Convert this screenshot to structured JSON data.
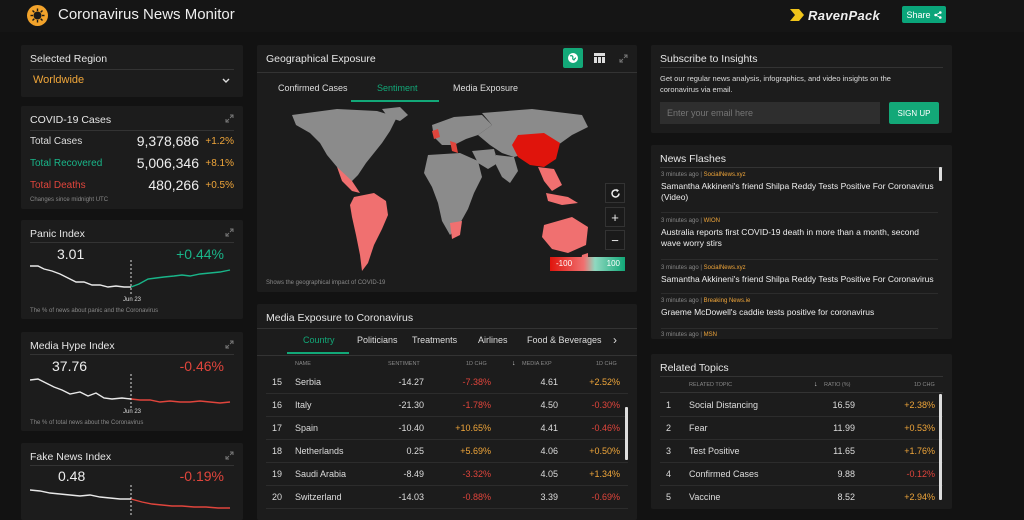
{
  "app": {
    "title": "Coronavirus News Monitor",
    "brand": "RavenPack",
    "share_label": "Share"
  },
  "region": {
    "title": "Selected Region",
    "value": "Worldwide"
  },
  "cases": {
    "title": "COVID-19 Cases",
    "rows": [
      {
        "label": "Total Cases",
        "value": "9,378,686",
        "pct": "+1.2%"
      },
      {
        "label": "Total Recovered",
        "value": "5,006,346",
        "pct": "+8.1%"
      },
      {
        "label": "Total Deaths",
        "value": "480,266",
        "pct": "+0.5%"
      }
    ],
    "note": "Changes since midnight UTC"
  },
  "panic": {
    "title": "Panic Index",
    "value": "3.01",
    "change": "+0.44%",
    "date": "Jun 23",
    "note": "The % of news about panic and the Coronavirus"
  },
  "hype": {
    "title": "Media Hype Index",
    "value": "37.76",
    "change": "-0.46%",
    "date": "Jun 23",
    "note": "The % of total news about the Coronavirus"
  },
  "fake": {
    "title": "Fake News Index",
    "value": "0.48",
    "change": "-0.19%"
  },
  "geo": {
    "title": "Geographical Exposure",
    "tabs": [
      "Confirmed Cases",
      "Sentiment",
      "Media Exposure"
    ],
    "active_tab": "Sentiment",
    "legend_min": "-100",
    "legend_max": "100",
    "caption": "Shows the geographical impact of COVID-19"
  },
  "media": {
    "title": "Media Exposure to Coronavirus",
    "tabs": [
      "Country",
      "Politicians",
      "Treatments",
      "Airlines",
      "Food & Beverages"
    ],
    "active_tab": "Country",
    "columns": [
      "NAME",
      "SENTIMENT",
      "1D CHG",
      "MEDIA EXP",
      "1D CHG"
    ],
    "rows": [
      {
        "rank": "15",
        "name": "Serbia",
        "sentiment": "-14.27",
        "chg1": "-7.38%",
        "exposure": "4.61",
        "chg2": "+2.52%"
      },
      {
        "rank": "16",
        "name": "Italy",
        "sentiment": "-21.30",
        "chg1": "-1.78%",
        "exposure": "4.50",
        "chg2": "-0.30%"
      },
      {
        "rank": "17",
        "name": "Spain",
        "sentiment": "-10.40",
        "chg1": "+10.65%",
        "exposure": "4.41",
        "chg2": "-0.46%"
      },
      {
        "rank": "18",
        "name": "Netherlands",
        "sentiment": "0.25",
        "chg1": "+5.69%",
        "exposure": "4.06",
        "chg2": "+0.50%"
      },
      {
        "rank": "19",
        "name": "Saudi Arabia",
        "sentiment": "-8.49",
        "chg1": "-3.32%",
        "exposure": "4.05",
        "chg2": "+1.34%"
      },
      {
        "rank": "20",
        "name": "Switzerland",
        "sentiment": "-14.03",
        "chg1": "-0.88%",
        "exposure": "3.39",
        "chg2": "-0.69%"
      }
    ]
  },
  "subscribe": {
    "title": "Subscribe to Insights",
    "text": "Get our regular news analysis, infographics, and video insights on the coronavirus via email.",
    "placeholder": "Enter your email here",
    "button": "SIGN UP"
  },
  "flashes": {
    "title": "News Flashes",
    "items": [
      {
        "time": "3 minutes ago",
        "source": "SocialNews.xyz",
        "headline": "Samantha Akkineni's friend Shilpa Reddy Tests Positive For Coronavirus (Video)"
      },
      {
        "time": "3 minutes ago",
        "source": "WION",
        "headline": "Australia reports first COVID-19 death in more than a month, second wave worry stirs"
      },
      {
        "time": "3 minutes ago",
        "source": "SocialNews.xyz",
        "headline": "Samantha Akkineni's friend Shilpa Reddy Tests Positive For Coronavirus"
      },
      {
        "time": "3 minutes ago",
        "source": "Breaking News.ie",
        "headline": "Graeme McDowell's caddie tests positive for coronavirus"
      },
      {
        "time": "3 minutes ago",
        "source": "MSN",
        "headline": ""
      }
    ]
  },
  "topics": {
    "title": "Related Topics",
    "columns": [
      "RELATED TOPIC",
      "RATIO (%)",
      "1D CHG"
    ],
    "rows": [
      {
        "rank": "1",
        "name": "Social Distancing",
        "ratio": "16.59",
        "chg": "+2.38%"
      },
      {
        "rank": "2",
        "name": "Fear",
        "ratio": "11.99",
        "chg": "+0.53%"
      },
      {
        "rank": "3",
        "name": "Test Positive",
        "ratio": "11.65",
        "chg": "+1.76%"
      },
      {
        "rank": "4",
        "name": "Confirmed Cases",
        "ratio": "9.88",
        "chg": "-0.12%"
      },
      {
        "rank": "5",
        "name": "Vaccine",
        "ratio": "8.52",
        "chg": "+2.94%"
      }
    ]
  },
  "colors": {
    "accent": "#12a878",
    "positive": "#19b589",
    "negative": "#e0453c",
    "warning": "#f0a63a"
  },
  "icons": [
    "covid-logo-icon",
    "share-icon",
    "chevron-down-icon",
    "expand-icon",
    "globe-icon",
    "table-icon",
    "refresh-icon",
    "zoom-in-icon",
    "zoom-out-icon",
    "sort-down-icon"
  ]
}
